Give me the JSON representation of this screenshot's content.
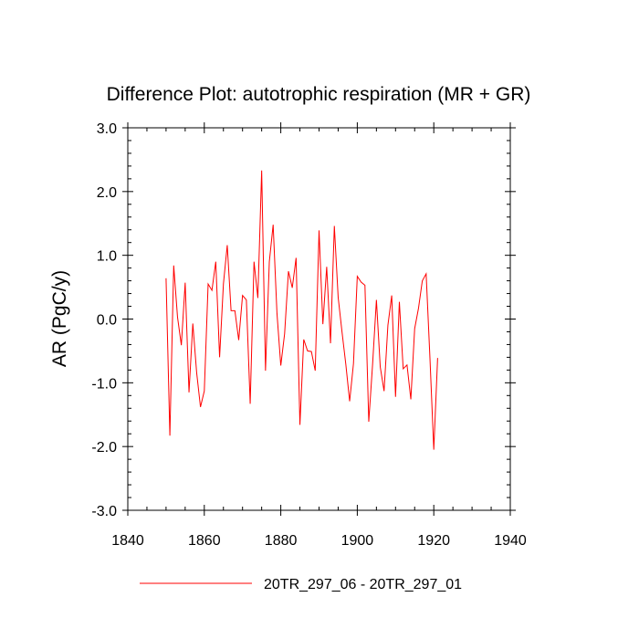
{
  "chart_data": {
    "type": "line",
    "title": "Difference Plot: autotrophic respiration (MR + GR)",
    "xlabel": "",
    "ylabel": "AR  (PgC/y)",
    "xlim": [
      1840,
      1940
    ],
    "ylim": [
      -3.0,
      3.0
    ],
    "xticks": [
      1840,
      1860,
      1880,
      1900,
      1920,
      1940
    ],
    "xtick_labels": [
      "1840",
      "1860",
      "1880",
      "1900",
      "1920",
      "1940"
    ],
    "yticks": [
      -3.0,
      -2.0,
      -1.0,
      0.0,
      1.0,
      2.0,
      3.0
    ],
    "ytick_labels": [
      "-3.0",
      "-2.0",
      "-1.0",
      "0.0",
      "1.0",
      "2.0",
      "3.0"
    ],
    "grid": false,
    "legend_position": "bottom-center",
    "series": [
      {
        "name": "20TR_297_06 - 20TR_297_01",
        "color": "#ff0000",
        "x": [
          1850,
          1851,
          1852,
          1853,
          1854,
          1855,
          1856,
          1857,
          1858,
          1859,
          1860,
          1861,
          1862,
          1863,
          1864,
          1865,
          1866,
          1867,
          1868,
          1869,
          1870,
          1871,
          1872,
          1873,
          1874,
          1875,
          1876,
          1877,
          1878,
          1879,
          1880,
          1881,
          1882,
          1883,
          1884,
          1885,
          1886,
          1887,
          1888,
          1889,
          1890,
          1891,
          1892,
          1893,
          1894,
          1895,
          1896,
          1897,
          1898,
          1899,
          1900,
          1901,
          1902,
          1903,
          1904,
          1905,
          1906,
          1907,
          1908,
          1909,
          1910,
          1911,
          1912,
          1913,
          1914,
          1915,
          1916,
          1917,
          1918,
          1919,
          1920,
          1921
        ],
        "values": [
          0.64,
          -1.83,
          0.84,
          0.03,
          -0.41,
          0.57,
          -1.15,
          -0.07,
          -0.84,
          -1.38,
          -1.13,
          0.55,
          0.45,
          0.9,
          -0.6,
          0.55,
          1.16,
          0.13,
          0.13,
          -0.33,
          0.37,
          0.3,
          -1.33,
          0.9,
          0.33,
          2.33,
          -0.81,
          0.9,
          1.48,
          0.09,
          -0.73,
          -0.23,
          0.75,
          0.49,
          0.96,
          -1.66,
          -0.32,
          -0.5,
          -0.51,
          -0.81,
          1.39,
          -0.08,
          0.82,
          -0.38,
          1.46,
          0.34,
          -0.2,
          -0.71,
          -1.29,
          -0.7,
          0.67,
          0.58,
          0.53,
          -1.61,
          -0.71,
          0.3,
          -0.75,
          -1.13,
          -0.1,
          0.37,
          -1.22,
          0.27,
          -0.78,
          -0.72,
          -1.26,
          -0.15,
          0.17,
          0.6,
          0.71,
          -0.62,
          -2.05,
          -0.61
        ]
      }
    ]
  }
}
